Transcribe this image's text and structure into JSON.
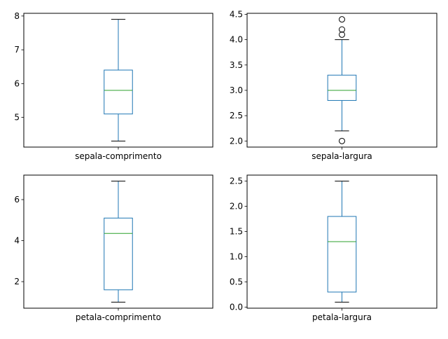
{
  "figure": {
    "box_color": "#1f77b4",
    "median_color": "#2ca02c",
    "cap_color": "#000000",
    "outlier_marker": "open-circle"
  },
  "chart_data": [
    {
      "type": "box",
      "category": "sepala-comprimento",
      "yticks": [
        5,
        6,
        7,
        8
      ],
      "ylim": [
        4.12,
        8.08
      ],
      "stats": {
        "whislo": 4.3,
        "q1": 5.1,
        "med": 5.8,
        "q3": 6.4,
        "whishi": 7.9
      },
      "fliers": []
    },
    {
      "type": "box",
      "category": "sepala-largura",
      "yticks": [
        2.0,
        2.5,
        3.0,
        3.5,
        4.0,
        4.5
      ],
      "ylim": [
        1.88,
        4.52
      ],
      "stats": {
        "whislo": 2.2,
        "q1": 2.8,
        "med": 3.0,
        "q3": 3.3,
        "whishi": 4.0
      },
      "fliers": [
        2.0,
        4.1,
        4.2,
        4.4
      ]
    },
    {
      "type": "box",
      "category": "petala-comprimento",
      "yticks": [
        2,
        4,
        6
      ],
      "ylim": [
        0.705,
        7.195
      ],
      "stats": {
        "whislo": 1.0,
        "q1": 1.6,
        "med": 4.35,
        "q3": 5.1,
        "whishi": 6.9
      },
      "fliers": []
    },
    {
      "type": "box",
      "category": "petala-largura",
      "yticks": [
        0.0,
        0.5,
        1.0,
        1.5,
        2.0,
        2.5
      ],
      "ylim": [
        -0.02,
        2.62
      ],
      "stats": {
        "whislo": 0.1,
        "q1": 0.3,
        "med": 1.3,
        "q3": 1.8,
        "whishi": 2.5
      },
      "fliers": []
    }
  ]
}
